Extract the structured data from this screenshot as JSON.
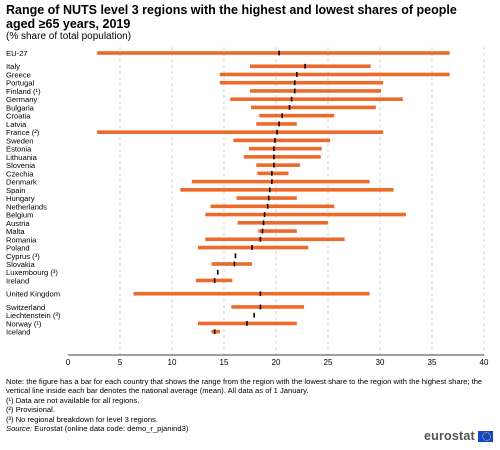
{
  "title": "Range of NUTS level 3 regions with the highest and lowest shares of people aged ≥65 years, 2019",
  "subtitle": "(% share of total population)",
  "colors": {
    "bar": "#ec6a2c",
    "mean": "#000000",
    "grid": "#c8c8c8"
  },
  "notes": [
    "Note: the figure has a bar for each country that shows the range from the region with the lowest share to the region with the highest share; the vertical line inside each bar denotes the national average (mean). All data as of 1 January.",
    "(¹) Data are not available for all regions.",
    "(²) Provisional.",
    "(³) No regional breakdown for level 3 regions."
  ],
  "source_label": "Source:",
  "source_text": "Eurostat (online data code: demo_r_pjanind3)",
  "logo_text": "eurostat",
  "chart_data": {
    "type": "range-bar",
    "xlim": [
      0,
      40
    ],
    "xticks": [
      0,
      5,
      10,
      15,
      20,
      25,
      30,
      35,
      40
    ],
    "grid": "vertical",
    "groups": [
      [
        {
          "label": "EU-27",
          "min": 2.8,
          "max": 36.7,
          "mean": 20.3
        }
      ],
      [
        {
          "label": "Italy",
          "min": 17.5,
          "max": 29.1,
          "mean": 22.8
        },
        {
          "label": "Greece",
          "min": 14.6,
          "max": 36.7,
          "mean": 22.0
        },
        {
          "label": "Portugal",
          "min": 14.6,
          "max": 30.3,
          "mean": 21.8
        },
        {
          "label": "Finland (¹)",
          "min": 17.5,
          "max": 30.1,
          "mean": 21.8
        },
        {
          "label": "Germany",
          "min": 15.6,
          "max": 32.2,
          "mean": 21.5
        },
        {
          "label": "Bulgaria",
          "min": 17.6,
          "max": 29.6,
          "mean": 21.3
        },
        {
          "label": "Croatia",
          "min": 18.4,
          "max": 25.6,
          "mean": 20.6
        },
        {
          "label": "Latvia",
          "min": 18.1,
          "max": 22.0,
          "mean": 20.3
        },
        {
          "label": "France (²)",
          "min": 2.8,
          "max": 30.3,
          "mean": 20.1
        },
        {
          "label": "Sweden",
          "min": 15.9,
          "max": 25.2,
          "mean": 19.9
        },
        {
          "label": "Estonia",
          "min": 17.4,
          "max": 24.4,
          "mean": 19.8
        },
        {
          "label": "Lithuania",
          "min": 16.9,
          "max": 24.3,
          "mean": 19.8
        },
        {
          "label": "Slovenia",
          "min": 18.1,
          "max": 22.3,
          "mean": 19.8
        },
        {
          "label": "Czechia",
          "min": 18.2,
          "max": 21.2,
          "mean": 19.6
        },
        {
          "label": "Denmark",
          "min": 11.9,
          "max": 29.0,
          "mean": 19.6
        },
        {
          "label": "Spain",
          "min": 10.8,
          "max": 31.3,
          "mean": 19.4
        },
        {
          "label": "Hungary",
          "min": 16.2,
          "max": 22.0,
          "mean": 19.3
        },
        {
          "label": "Netherlands",
          "min": 13.7,
          "max": 25.6,
          "mean": 19.2
        },
        {
          "label": "Belgium",
          "min": 13.2,
          "max": 32.5,
          "mean": 18.9
        },
        {
          "label": "Austria",
          "min": 16.3,
          "max": 25.0,
          "mean": 18.8
        },
        {
          "label": "Malta",
          "min": 18.3,
          "max": 22.0,
          "mean": 18.7
        },
        {
          "label": "Romania",
          "min": 13.2,
          "max": 26.6,
          "mean": 18.5
        },
        {
          "label": "Poland",
          "min": 12.5,
          "max": 23.1,
          "mean": 17.7
        },
        {
          "label": "Cyprus (³)",
          "min": 16.1,
          "max": 16.1,
          "mean": 16.1
        },
        {
          "label": "Slovakia",
          "min": 13.8,
          "max": 17.7,
          "mean": 16.0
        },
        {
          "label": "Luxembourg (³)",
          "min": 14.4,
          "max": 14.4,
          "mean": 14.4
        },
        {
          "label": "Ireland",
          "min": 12.3,
          "max": 15.8,
          "mean": 14.1
        }
      ],
      [
        {
          "label": "United Kingdom",
          "min": 6.3,
          "max": 29.0,
          "mean": 18.5
        }
      ],
      [
        {
          "label": "Switzerland",
          "min": 15.7,
          "max": 22.7,
          "mean": 18.5
        },
        {
          "label": "Liechtenstein (³)",
          "min": 17.9,
          "max": 17.9,
          "mean": 17.9
        },
        {
          "label": "Norway (¹)",
          "min": 12.5,
          "max": 22.0,
          "mean": 17.2
        },
        {
          "label": "Iceland",
          "min": 13.8,
          "max": 14.6,
          "mean": 14.1
        }
      ]
    ]
  }
}
